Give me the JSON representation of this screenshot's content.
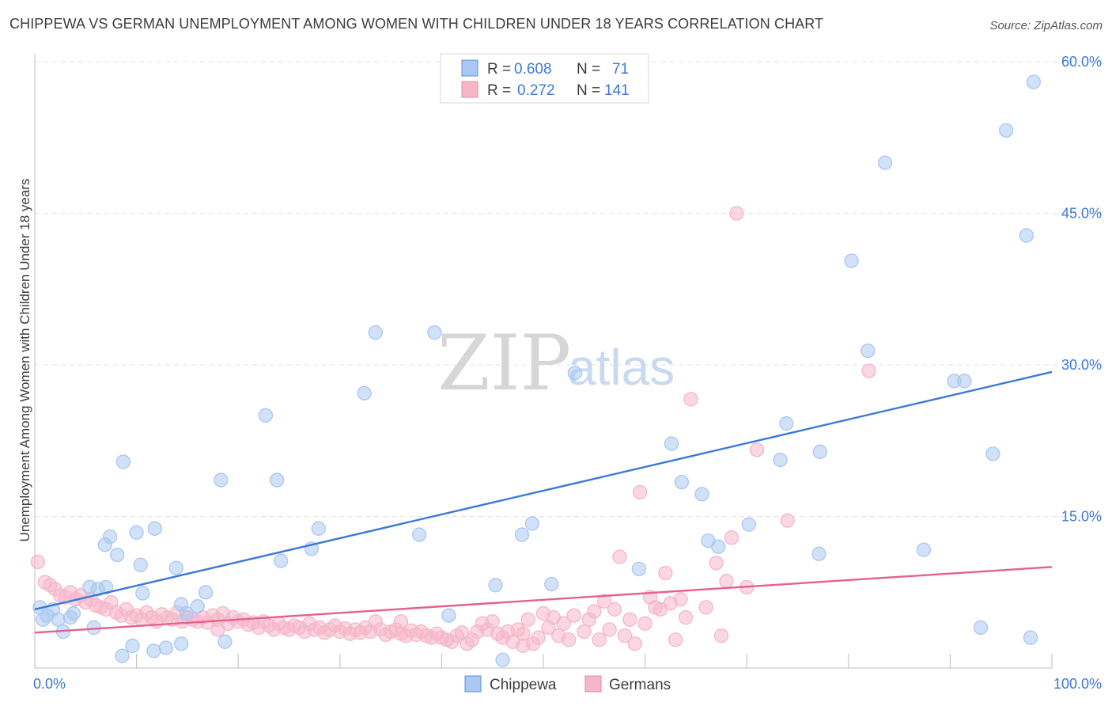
{
  "title": "CHIPPEWA VS GERMAN UNEMPLOYMENT AMONG WOMEN WITH CHILDREN UNDER 18 YEARS CORRELATION CHART",
  "source": "Source: ZipAtlas.com",
  "watermark": {
    "zip": "ZIP",
    "atlas": "atlas"
  },
  "legend_top": [
    {
      "r_label": "R =",
      "r_value": "0.608",
      "n_label": "N =",
      "n_value": "71",
      "color": "#a9c8f2"
    },
    {
      "r_label": "R =",
      "r_value": "0.272",
      "n_label": "N =",
      "n_value": "141",
      "color": "#f6b6ca"
    }
  ],
  "chart_data": {
    "type": "scatter",
    "title": "CHIPPEWA VS GERMAN UNEMPLOYMENT AMONG WOMEN WITH CHILDREN UNDER 18 YEARS CORRELATION CHART",
    "ylabel": "Unemployment Among Women with Children Under 18 years",
    "xlim": [
      0,
      100
    ],
    "ylim": [
      0,
      60
    ],
    "x_tick_labels": [
      "0.0%",
      "100.0%"
    ],
    "y_ticks": [
      15,
      30,
      45,
      60
    ],
    "y_tick_labels": [
      "15.0%",
      "30.0%",
      "45.0%",
      "60.0%"
    ],
    "grid": true,
    "legend_position": "bottom-center",
    "series": [
      {
        "name": "Chippewa",
        "color": "#3c78d8",
        "fill": "#a9c8f2",
        "trend": {
          "x": [
            0,
            100
          ],
          "y": [
            5.8,
            29.3
          ]
        },
        "points": [
          [
            0.5,
            6.0
          ],
          [
            0.8,
            4.8
          ],
          [
            1.2,
            5.2
          ],
          [
            1.8,
            5.8
          ],
          [
            2.3,
            4.8
          ],
          [
            2.8,
            3.6
          ],
          [
            3.8,
            5.4
          ],
          [
            5.4,
            8.0
          ],
          [
            6.2,
            7.8
          ],
          [
            7.0,
            8.0
          ],
          [
            5.8,
            4.0
          ],
          [
            6.9,
            12.2
          ],
          [
            7.4,
            13.0
          ],
          [
            8.1,
            11.2
          ],
          [
            8.7,
            20.4
          ],
          [
            10.0,
            13.4
          ],
          [
            10.4,
            10.2
          ],
          [
            10.6,
            7.4
          ],
          [
            11.8,
            13.8
          ],
          [
            12.9,
            2.0
          ],
          [
            13.9,
            9.9
          ],
          [
            14.4,
            6.3
          ],
          [
            14.9,
            5.4
          ],
          [
            16.0,
            6.1
          ],
          [
            16.8,
            7.5
          ],
          [
            18.3,
            18.6
          ],
          [
            18.7,
            2.6
          ],
          [
            22.7,
            25.0
          ],
          [
            23.8,
            18.6
          ],
          [
            24.2,
            10.6
          ],
          [
            27.2,
            11.8
          ],
          [
            27.9,
            13.8
          ],
          [
            32.4,
            27.2
          ],
          [
            33.5,
            33.2
          ],
          [
            37.8,
            13.2
          ],
          [
            39.3,
            33.2
          ],
          [
            40.7,
            5.2
          ],
          [
            45.3,
            8.2
          ],
          [
            46.0,
            0.8
          ],
          [
            47.9,
            13.2
          ],
          [
            48.9,
            14.3
          ],
          [
            50.8,
            8.3
          ],
          [
            53.1,
            29.2
          ],
          [
            59.4,
            9.8
          ],
          [
            62.6,
            22.2
          ],
          [
            63.6,
            18.4
          ],
          [
            65.6,
            17.2
          ],
          [
            66.2,
            12.6
          ],
          [
            67.2,
            12.0
          ],
          [
            70.2,
            14.2
          ],
          [
            73.3,
            20.6
          ],
          [
            73.9,
            24.2
          ],
          [
            77.2,
            21.4
          ],
          [
            77.1,
            11.3
          ],
          [
            80.3,
            40.3
          ],
          [
            81.9,
            31.4
          ],
          [
            83.6,
            50.0
          ],
          [
            87.4,
            11.7
          ],
          [
            90.4,
            28.4
          ],
          [
            91.4,
            28.4
          ],
          [
            93.0,
            4.0
          ],
          [
            94.2,
            21.2
          ],
          [
            95.5,
            53.2
          ],
          [
            97.5,
            42.8
          ],
          [
            97.9,
            3.0
          ],
          [
            98.2,
            58.0
          ],
          [
            8.6,
            1.2
          ],
          [
            9.6,
            2.2
          ],
          [
            11.7,
            1.7
          ],
          [
            14.4,
            2.4
          ],
          [
            3.5,
            5.0
          ]
        ]
      },
      {
        "name": "Germans",
        "color": "#e5608c",
        "fill": "#f6b6ca",
        "trend": {
          "x": [
            0,
            100
          ],
          "y": [
            3.5,
            10.0
          ]
        },
        "points": [
          [
            0.3,
            10.5
          ],
          [
            1.0,
            8.5
          ],
          [
            1.5,
            8.2
          ],
          [
            2.0,
            7.8
          ],
          [
            2.5,
            7.2
          ],
          [
            3.0,
            7.0
          ],
          [
            3.5,
            7.5
          ],
          [
            4.0,
            6.8
          ],
          [
            4.5,
            7.2
          ],
          [
            5.0,
            6.5
          ],
          [
            5.5,
            6.8
          ],
          [
            6.0,
            6.2
          ],
          [
            6.5,
            6.0
          ],
          [
            7.0,
            5.8
          ],
          [
            7.5,
            6.5
          ],
          [
            8.0,
            5.5
          ],
          [
            8.5,
            5.2
          ],
          [
            9.0,
            5.8
          ],
          [
            9.5,
            5.0
          ],
          [
            10.0,
            5.2
          ],
          [
            10.5,
            4.8
          ],
          [
            11.0,
            5.5
          ],
          [
            11.5,
            5.0
          ],
          [
            12.0,
            4.6
          ],
          [
            12.5,
            5.3
          ],
          [
            13.0,
            5.0
          ],
          [
            13.5,
            4.8
          ],
          [
            14.0,
            5.5
          ],
          [
            14.5,
            4.6
          ],
          [
            15.0,
            5.0
          ],
          [
            15.5,
            4.8
          ],
          [
            16.0,
            4.6
          ],
          [
            16.5,
            5.0
          ],
          [
            17.0,
            4.5
          ],
          [
            17.5,
            5.2
          ],
          [
            18.0,
            4.8
          ],
          [
            18.5,
            5.4
          ],
          [
            19.0,
            4.4
          ],
          [
            19.5,
            5.0
          ],
          [
            20.0,
            4.6
          ],
          [
            20.5,
            4.8
          ],
          [
            21.0,
            4.3
          ],
          [
            21.5,
            4.5
          ],
          [
            22.0,
            4.0
          ],
          [
            22.5,
            4.6
          ],
          [
            23.0,
            4.2
          ],
          [
            23.5,
            3.8
          ],
          [
            24.0,
            4.4
          ],
          [
            24.5,
            4.0
          ],
          [
            25.0,
            3.8
          ],
          [
            25.5,
            4.2
          ],
          [
            26.0,
            4.0
          ],
          [
            26.5,
            3.6
          ],
          [
            27.0,
            4.4
          ],
          [
            27.5,
            3.8
          ],
          [
            28.0,
            4.0
          ],
          [
            28.5,
            3.5
          ],
          [
            29.0,
            3.8
          ],
          [
            29.5,
            4.2
          ],
          [
            30.0,
            3.6
          ],
          [
            30.5,
            3.9
          ],
          [
            31.0,
            3.4
          ],
          [
            31.5,
            3.8
          ],
          [
            32.0,
            3.5
          ],
          [
            32.5,
            4.0
          ],
          [
            33.0,
            3.6
          ],
          [
            33.5,
            4.6
          ],
          [
            34.0,
            3.8
          ],
          [
            34.5,
            3.3
          ],
          [
            35.0,
            3.6
          ],
          [
            35.5,
            3.8
          ],
          [
            36.0,
            3.4
          ],
          [
            36.5,
            3.2
          ],
          [
            37.0,
            3.7
          ],
          [
            37.5,
            3.3
          ],
          [
            38.0,
            3.6
          ],
          [
            38.5,
            3.2
          ],
          [
            39.0,
            3.0
          ],
          [
            39.5,
            3.4
          ],
          [
            40.0,
            3.0
          ],
          [
            40.5,
            2.8
          ],
          [
            41.0,
            2.6
          ],
          [
            41.5,
            3.2
          ],
          [
            42.0,
            3.5
          ],
          [
            42.5,
            2.4
          ],
          [
            43.0,
            2.8
          ],
          [
            43.5,
            3.6
          ],
          [
            44.0,
            4.4
          ],
          [
            44.5,
            3.8
          ],
          [
            45.0,
            4.6
          ],
          [
            45.5,
            3.4
          ],
          [
            46.0,
            3.0
          ],
          [
            46.5,
            3.6
          ],
          [
            47.0,
            2.6
          ],
          [
            47.5,
            3.8
          ],
          [
            48.0,
            3.4
          ],
          [
            48.5,
            4.8
          ],
          [
            49.0,
            2.4
          ],
          [
            49.5,
            3.0
          ],
          [
            50.0,
            5.4
          ],
          [
            50.5,
            4.0
          ],
          [
            51.0,
            5.0
          ],
          [
            51.5,
            3.2
          ],
          [
            52.0,
            4.4
          ],
          [
            52.5,
            2.8
          ],
          [
            53.0,
            5.2
          ],
          [
            54.0,
            3.6
          ],
          [
            54.5,
            4.8
          ],
          [
            55.0,
            5.6
          ],
          [
            55.5,
            2.8
          ],
          [
            56.0,
            6.6
          ],
          [
            56.5,
            3.8
          ],
          [
            57.0,
            5.8
          ],
          [
            57.5,
            11.0
          ],
          [
            58.0,
            3.2
          ],
          [
            58.5,
            4.8
          ],
          [
            59.0,
            2.4
          ],
          [
            59.5,
            17.4
          ],
          [
            60.0,
            4.4
          ],
          [
            60.5,
            7.0
          ],
          [
            61.0,
            6.0
          ],
          [
            61.5,
            5.8
          ],
          [
            62.0,
            9.4
          ],
          [
            62.5,
            6.4
          ],
          [
            63.0,
            2.8
          ],
          [
            63.5,
            6.8
          ],
          [
            64.0,
            5.0
          ],
          [
            64.5,
            26.6
          ],
          [
            66.0,
            6.0
          ],
          [
            67.0,
            10.4
          ],
          [
            67.5,
            3.2
          ],
          [
            68.0,
            8.6
          ],
          [
            68.5,
            12.9
          ],
          [
            69.0,
            45.0
          ],
          [
            70.0,
            8.0
          ],
          [
            71.0,
            21.6
          ],
          [
            74.0,
            14.6
          ],
          [
            82.0,
            29.4
          ],
          [
            48.0,
            2.2
          ],
          [
            36.0,
            4.6
          ],
          [
            18.0,
            3.8
          ]
        ]
      }
    ]
  }
}
